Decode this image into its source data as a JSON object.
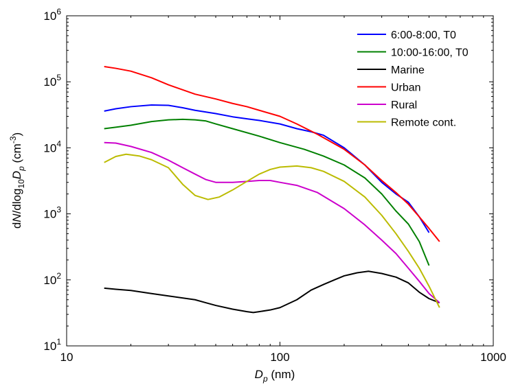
{
  "chart_data": {
    "type": "line",
    "xscale": "log",
    "yscale": "log",
    "xlim": [
      10,
      1000
    ],
    "ylim": [
      10,
      1000000
    ],
    "grid": false,
    "legend_position": "top-right",
    "x_ticks": [
      {
        "value": 10,
        "label": "10"
      },
      {
        "value": 100,
        "label": "100"
      },
      {
        "value": 1000,
        "label": "1000"
      }
    ],
    "y_ticks": [
      {
        "value": 10,
        "base": "10",
        "exp": "1"
      },
      {
        "value": 100,
        "base": "10",
        "exp": "2"
      },
      {
        "value": 1000,
        "base": "10",
        "exp": "3"
      },
      {
        "value": 10000,
        "base": "10",
        "exp": "4"
      },
      {
        "value": 100000,
        "base": "10",
        "exp": "5"
      },
      {
        "value": 1000000,
        "base": "10",
        "exp": "6"
      }
    ],
    "xlabel": {
      "main": "D",
      "sub": "p",
      "unit": " (nm)"
    },
    "ylabel": {
      "p1": "d",
      "p2": "N",
      "p3": "/dlog",
      "p4": "10",
      "p5": "D",
      "p6": "p",
      "p7": " (cm",
      "p8": "-3",
      "p9": ")"
    },
    "series": [
      {
        "name": "6:00-8:00, T0",
        "color": "#0000ff",
        "points": [
          [
            15,
            36000
          ],
          [
            17,
            39000
          ],
          [
            20,
            42000
          ],
          [
            25,
            44500
          ],
          [
            30,
            44000
          ],
          [
            35,
            40500
          ],
          [
            40,
            37000
          ],
          [
            50,
            33000
          ],
          [
            60,
            29500
          ],
          [
            70,
            27500
          ],
          [
            80,
            26000
          ],
          [
            100,
            23000
          ],
          [
            120,
            19500
          ],
          [
            140,
            17500
          ],
          [
            160,
            15500
          ],
          [
            200,
            10000
          ],
          [
            250,
            5500
          ],
          [
            300,
            3000
          ],
          [
            350,
            2000
          ],
          [
            400,
            1500
          ],
          [
            450,
            900
          ],
          [
            500,
            520
          ]
        ]
      },
      {
        "name": "10:00-16:00, T0",
        "color": "#008000",
        "points": [
          [
            15,
            19500
          ],
          [
            17,
            20500
          ],
          [
            20,
            22000
          ],
          [
            25,
            25000
          ],
          [
            30,
            26500
          ],
          [
            35,
            27000
          ],
          [
            40,
            26500
          ],
          [
            45,
            25500
          ],
          [
            50,
            23000
          ],
          [
            60,
            19500
          ],
          [
            80,
            15000
          ],
          [
            100,
            12000
          ],
          [
            130,
            9500
          ],
          [
            160,
            7500
          ],
          [
            200,
            5500
          ],
          [
            250,
            3500
          ],
          [
            300,
            2000
          ],
          [
            350,
            1100
          ],
          [
            400,
            700
          ],
          [
            450,
            380
          ],
          [
            500,
            165
          ]
        ]
      },
      {
        "name": "Marine",
        "color": "#000000",
        "points": [
          [
            15,
            75
          ],
          [
            17,
            72
          ],
          [
            20,
            69
          ],
          [
            25,
            62
          ],
          [
            30,
            57
          ],
          [
            40,
            50
          ],
          [
            45,
            45
          ],
          [
            50,
            41
          ],
          [
            60,
            36
          ],
          [
            70,
            33
          ],
          [
            75,
            32
          ],
          [
            80,
            33
          ],
          [
            90,
            35
          ],
          [
            100,
            38
          ],
          [
            120,
            50
          ],
          [
            140,
            70
          ],
          [
            160,
            85
          ],
          [
            180,
            100
          ],
          [
            200,
            115
          ],
          [
            230,
            128
          ],
          [
            260,
            135
          ],
          [
            300,
            125
          ],
          [
            350,
            110
          ],
          [
            400,
            90
          ],
          [
            450,
            65
          ],
          [
            500,
            52
          ],
          [
            560,
            45
          ]
        ]
      },
      {
        "name": "Urban",
        "color": "#ff0000",
        "points": [
          [
            15,
            170000
          ],
          [
            17,
            160000
          ],
          [
            20,
            145000
          ],
          [
            25,
            115000
          ],
          [
            30,
            90000
          ],
          [
            40,
            65000
          ],
          [
            50,
            55000
          ],
          [
            60,
            47000
          ],
          [
            70,
            42000
          ],
          [
            80,
            37000
          ],
          [
            100,
            30000
          ],
          [
            120,
            23000
          ],
          [
            150,
            16000
          ],
          [
            200,
            9500
          ],
          [
            250,
            5500
          ],
          [
            300,
            3200
          ],
          [
            350,
            2100
          ],
          [
            400,
            1400
          ],
          [
            450,
            900
          ],
          [
            500,
            600
          ],
          [
            560,
            380
          ]
        ]
      },
      {
        "name": "Rural",
        "color": "#cc00cc",
        "points": [
          [
            15,
            12000
          ],
          [
            17,
            11800
          ],
          [
            20,
            10500
          ],
          [
            25,
            8500
          ],
          [
            30,
            6500
          ],
          [
            35,
            5000
          ],
          [
            40,
            4000
          ],
          [
            45,
            3300
          ],
          [
            50,
            3000
          ],
          [
            60,
            3000
          ],
          [
            70,
            3100
          ],
          [
            80,
            3200
          ],
          [
            90,
            3200
          ],
          [
            100,
            3000
          ],
          [
            120,
            2700
          ],
          [
            150,
            2100
          ],
          [
            200,
            1200
          ],
          [
            250,
            680
          ],
          [
            300,
            400
          ],
          [
            350,
            250
          ],
          [
            400,
            150
          ],
          [
            450,
            95
          ],
          [
            500,
            62
          ],
          [
            560,
            45
          ]
        ]
      },
      {
        "name": "Remote cont.",
        "color": "#bbbb00",
        "points": [
          [
            15,
            6000
          ],
          [
            17,
            7400
          ],
          [
            19,
            8000
          ],
          [
            22,
            7500
          ],
          [
            25,
            6600
          ],
          [
            30,
            5000
          ],
          [
            35,
            2800
          ],
          [
            40,
            1900
          ],
          [
            46,
            1650
          ],
          [
            52,
            1800
          ],
          [
            60,
            2300
          ],
          [
            70,
            3100
          ],
          [
            80,
            4000
          ],
          [
            90,
            4700
          ],
          [
            100,
            5100
          ],
          [
            120,
            5300
          ],
          [
            140,
            5000
          ],
          [
            160,
            4400
          ],
          [
            200,
            3100
          ],
          [
            250,
            1800
          ],
          [
            300,
            950
          ],
          [
            350,
            500
          ],
          [
            400,
            270
          ],
          [
            450,
            150
          ],
          [
            500,
            80
          ],
          [
            560,
            38
          ]
        ]
      }
    ]
  }
}
